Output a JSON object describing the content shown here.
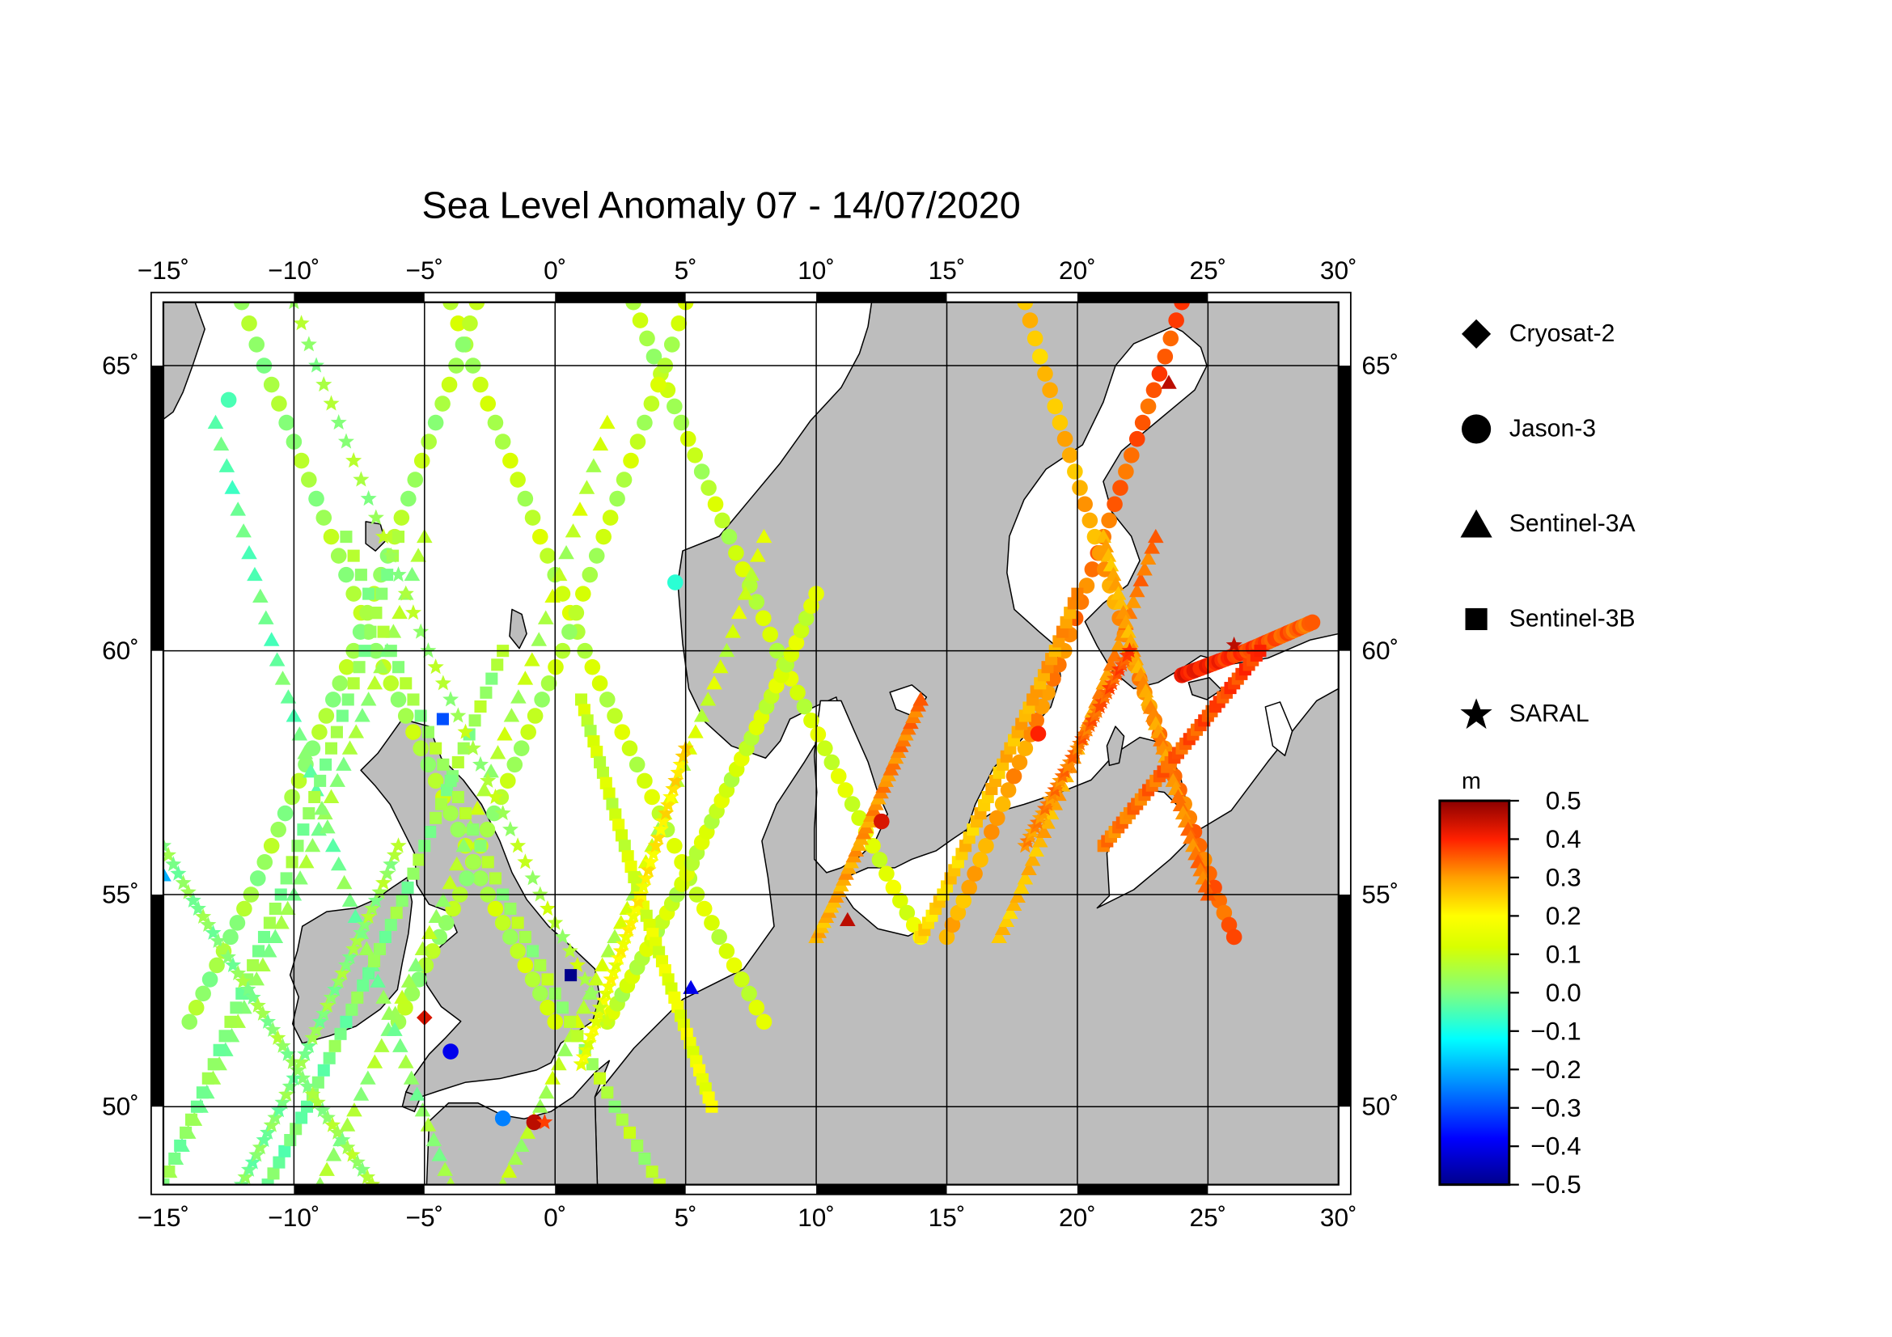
{
  "title": "Sea Level Anomaly 07 - 14/07/2020",
  "map": {
    "lon_range": [
      -15,
      30
    ],
    "lat_range": [
      48,
      66
    ],
    "lon_ticks": [
      -15,
      -10,
      -5,
      0,
      5,
      10,
      15,
      20,
      25,
      30
    ],
    "lat_ticks": [
      50,
      55,
      60,
      65
    ],
    "lon_tick_labels": [
      "−15˚",
      "−10˚",
      "−5˚",
      "0˚",
      "5˚",
      "10˚",
      "15˚",
      "20˚",
      "25˚",
      "30˚"
    ],
    "lat_tick_labels": [
      "50˚",
      "55˚",
      "60˚",
      "65˚"
    ],
    "land_color": "#bdbdbd",
    "sea_color": "#ffffff",
    "grid": true
  },
  "legend": {
    "items": [
      {
        "label": "Cryosat-2",
        "symbol": "diamond-icon"
      },
      {
        "label": "Jason-3",
        "symbol": "circle-icon"
      },
      {
        "label": "Sentinel-3A",
        "symbol": "triangle-icon"
      },
      {
        "label": "Sentinel-3B",
        "symbol": "square-icon"
      },
      {
        "label": "SARAL",
        "symbol": "star-icon"
      }
    ]
  },
  "colorbar": {
    "unit": "m",
    "min": -0.5,
    "max": 0.5,
    "ticks": [
      "0.5",
      "0.4",
      "0.3",
      "0.2",
      "0.1",
      "0.0",
      "−0.1",
      "−0.2",
      "−0.3",
      "−0.4",
      "−0.5"
    ],
    "colors": [
      "#8b0000",
      "#ff0000",
      "#ff8c00",
      "#ffff00",
      "#7cfc00",
      "#00ffff",
      "#0080ff",
      "#0000ff",
      "#00008b"
    ]
  },
  "chart_data": {
    "type": "scatter",
    "title": "Sea Level Anomaly 07 - 14/07/2020",
    "xlim": [
      -15,
      30
    ],
    "ylim": [
      48,
      66
    ],
    "value_unit": "m",
    "value_range": [
      -0.5,
      0.5
    ],
    "series": [
      {
        "name": "Cryosat-2",
        "marker": "diamond",
        "tracks": []
      },
      {
        "name": "Jason-3",
        "marker": "circle",
        "tracks": [
          {
            "lon": [
              -12,
              0
            ],
            "lat": [
              66,
              52
            ],
            "v": [
              0.02,
              0.06
            ]
          },
          {
            "lon": [
              -4,
              8
            ],
            "lat": [
              66,
              52
            ],
            "v": [
              0.05,
              0.08
            ]
          },
          {
            "lon": [
              3,
              14
            ],
            "lat": [
              66,
              54
            ],
            "v": [
              0.04,
              0.1
            ]
          },
          {
            "lon": [
              -14,
              -3
            ],
            "lat": [
              52,
              66
            ],
            "v": [
              0.02,
              0.04
            ]
          },
          {
            "lon": [
              -6,
              5
            ],
            "lat": [
              52,
              66
            ],
            "v": [
              0.03,
              0.06
            ]
          },
          {
            "lon": [
              2,
              10
            ],
            "lat": [
              52,
              61
            ],
            "v": [
              0.06,
              0.08
            ]
          },
          {
            "lon": [
              15,
              24
            ],
            "lat": [
              54,
              66
            ],
            "v": [
              0.22,
              0.34
            ]
          },
          {
            "lon": [
              24,
              29
            ],
            "lat": [
              59.5,
              60.5
            ],
            "v": [
              0.4,
              0.3
            ]
          },
          {
            "lon": [
              18,
              26
            ],
            "lat": [
              66,
              54
            ],
            "v": [
              0.2,
              0.32
            ]
          }
        ]
      },
      {
        "name": "Sentinel-3A",
        "marker": "triangle",
        "tracks": [
          {
            "lon": [
              -15,
              -5
            ],
            "lat": [
              48,
              62
            ],
            "v": [
              0.0,
              0.03
            ]
          },
          {
            "lon": [
              -9,
              2
            ],
            "lat": [
              48,
              64
            ],
            "v": [
              0.02,
              0.06
            ]
          },
          {
            "lon": [
              -13,
              -4
            ],
            "lat": [
              64,
              48
            ],
            "v": [
              -0.04,
              0.02
            ]
          },
          {
            "lon": [
              -2,
              8
            ],
            "lat": [
              48,
              62
            ],
            "v": [
              0.04,
              0.08
            ]
          },
          {
            "lon": [
              10,
              14
            ],
            "lat": [
              54,
              59
            ],
            "v": [
              0.22,
              0.3
            ]
          },
          {
            "lon": [
              17,
              23
            ],
            "lat": [
              54,
              62
            ],
            "v": [
              0.2,
              0.3
            ]
          },
          {
            "lon": [
              21,
              25
            ],
            "lat": [
              62,
              55
            ],
            "v": [
              0.22,
              0.3
            ]
          }
        ]
      },
      {
        "name": "Sentinel-3B",
        "marker": "square",
        "tracks": [
          {
            "lon": [
              -15,
              -6
            ],
            "lat": [
              48,
              62
            ],
            "v": [
              0.0,
              0.02
            ]
          },
          {
            "lon": [
              -11,
              -2
            ],
            "lat": [
              48,
              60
            ],
            "v": [
              -0.02,
              0.03
            ]
          },
          {
            "lon": [
              -8,
              4
            ],
            "lat": [
              62,
              48
            ],
            "v": [
              0.02,
              0.04
            ]
          },
          {
            "lon": [
              1,
              6
            ],
            "lat": [
              59,
              50
            ],
            "v": [
              0.06,
              0.12
            ]
          },
          {
            "lon": [
              14,
              20
            ],
            "lat": [
              54,
              61
            ],
            "v": [
              0.18,
              0.26
            ]
          },
          {
            "lon": [
              21,
              27
            ],
            "lat": [
              56,
              60
            ],
            "v": [
              0.28,
              0.36
            ]
          }
        ]
      },
      {
        "name": "SARAL",
        "marker": "star",
        "tracks": [
          {
            "lon": [
              -15,
              -7
            ],
            "lat": [
              56,
              48
            ],
            "v": [
              0.0,
              0.03
            ]
          },
          {
            "lon": [
              -12,
              -6
            ],
            "lat": [
              48,
              56
            ],
            "v": [
              -0.01,
              0.03
            ]
          },
          {
            "lon": [
              1,
              5
            ],
            "lat": [
              51,
              58
            ],
            "v": [
              0.1,
              0.18
            ]
          },
          {
            "lon": [
              -10,
              2
            ],
            "lat": [
              66,
              52
            ],
            "v": [
              0.02,
              0.05
            ]
          },
          {
            "lon": [
              18,
              22
            ],
            "lat": [
              56,
              60
            ],
            "v": [
              0.26,
              0.34
            ]
          }
        ]
      }
    ],
    "notable_points": [
      {
        "lon": 0.6,
        "lat": 53.1,
        "marker": "square",
        "v": -0.5
      },
      {
        "lon": -4.3,
        "lat": 58.6,
        "marker": "square",
        "v": -0.3
      },
      {
        "lon": -4.0,
        "lat": 51.3,
        "marker": "circle",
        "v": -0.4
      },
      {
        "lon": -2.0,
        "lat": 49.7,
        "marker": "circle",
        "v": -0.25
      },
      {
        "lon": 5.2,
        "lat": 52.8,
        "marker": "triangle",
        "v": -0.4
      },
      {
        "lon": -15.0,
        "lat": 55.4,
        "marker": "triangle",
        "v": -0.2
      },
      {
        "lon": -12.5,
        "lat": 64.4,
        "marker": "circle",
        "v": -0.05
      },
      {
        "lon": 4.6,
        "lat": 61.2,
        "marker": "circle",
        "v": -0.08
      },
      {
        "lon": -0.8,
        "lat": 49.6,
        "marker": "circle",
        "v": 0.45
      },
      {
        "lon": -0.4,
        "lat": 49.6,
        "marker": "star",
        "v": 0.35
      },
      {
        "lon": 26.0,
        "lat": 60.1,
        "marker": "star",
        "v": 0.45
      },
      {
        "lon": 23.5,
        "lat": 64.7,
        "marker": "triangle",
        "v": 0.45
      },
      {
        "lon": 18.5,
        "lat": 58.3,
        "marker": "circle",
        "v": 0.38
      },
      {
        "lon": 12.5,
        "lat": 56.5,
        "marker": "circle",
        "v": 0.42
      },
      {
        "lon": -5.0,
        "lat": 52.1,
        "marker": "diamond",
        "v": 0.42
      },
      {
        "lon": 11.2,
        "lat": 54.4,
        "marker": "triangle",
        "v": 0.45
      }
    ]
  }
}
